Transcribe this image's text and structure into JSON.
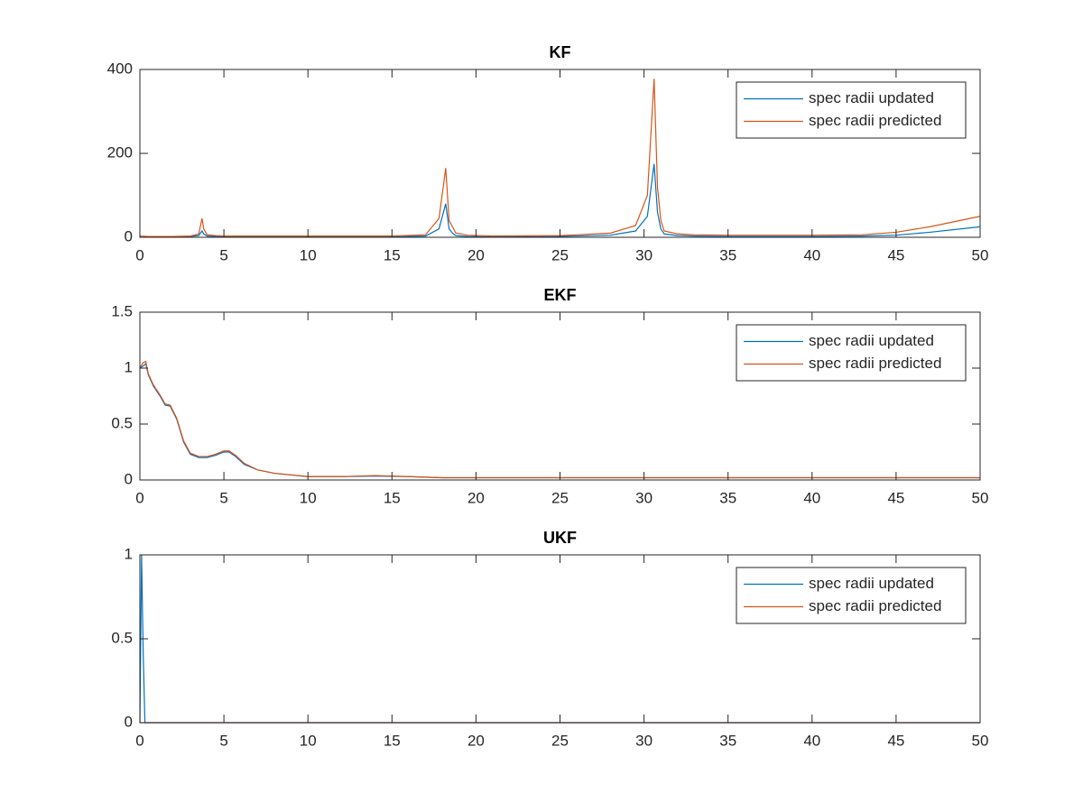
{
  "chart_data": [
    {
      "type": "line",
      "title": "KF",
      "legend": "northeast",
      "x": [
        0,
        0.5,
        1,
        2,
        3,
        3.5,
        3.7,
        3.8,
        4.0,
        4.5,
        5,
        10,
        15,
        17,
        17.8,
        18.2,
        18.4,
        18.6,
        18.8,
        19.5,
        21,
        25,
        28,
        29.5,
        30.2,
        30.6,
        30.8,
        31.0,
        31.2,
        32,
        33,
        35,
        40,
        43,
        45,
        47,
        50
      ],
      "series": [
        {
          "name": "spec radii updated",
          "color": "#0072bd",
          "values": [
            0,
            1,
            1,
            1,
            2,
            4,
            15,
            8,
            3,
            2,
            1,
            1,
            1,
            3,
            20,
            80,
            20,
            10,
            4,
            2,
            1,
            2,
            5,
            15,
            50,
            175,
            60,
            20,
            8,
            4,
            3,
            2,
            2,
            3,
            5,
            12,
            25
          ]
        },
        {
          "name": "spec radii predicted",
          "color": "#d95319",
          "values": [
            3,
            2,
            2,
            2,
            3,
            8,
            45,
            20,
            6,
            4,
            3,
            3,
            3,
            6,
            45,
            165,
            40,
            25,
            10,
            5,
            3,
            4,
            10,
            28,
            100,
            378,
            120,
            40,
            15,
            8,
            6,
            5,
            5,
            6,
            12,
            25,
            50
          ]
        }
      ],
      "xlim": [
        0,
        50
      ],
      "xticks": [
        0,
        5,
        10,
        15,
        20,
        25,
        30,
        35,
        40,
        45,
        50
      ],
      "ylim": [
        0,
        400
      ],
      "yticks": [
        0,
        200,
        400
      ]
    },
    {
      "type": "line",
      "title": "EKF",
      "legend": "northeast",
      "x": [
        0,
        0.2,
        0.35,
        0.5,
        0.8,
        1.2,
        1.5,
        1.8,
        2.2,
        2.6,
        3,
        3.5,
        4,
        4.5,
        5,
        5.3,
        5.7,
        6.2,
        7,
        8,
        10,
        12,
        14,
        16,
        18,
        25,
        35,
        50
      ],
      "series": [
        {
          "name": "spec radii updated",
          "color": "#0072bd",
          "values": [
            1.0,
            1.02,
            1.04,
            0.94,
            0.84,
            0.75,
            0.67,
            0.66,
            0.54,
            0.34,
            0.23,
            0.2,
            0.2,
            0.22,
            0.25,
            0.25,
            0.21,
            0.14,
            0.09,
            0.06,
            0.03,
            0.03,
            0.035,
            0.03,
            0.02,
            0.02,
            0.02,
            0.02
          ]
        },
        {
          "name": "spec radii predicted",
          "color": "#d95319",
          "values": [
            1.0,
            1.05,
            1.06,
            0.95,
            0.85,
            0.76,
            0.68,
            0.67,
            0.55,
            0.35,
            0.24,
            0.21,
            0.21,
            0.23,
            0.26,
            0.26,
            0.22,
            0.15,
            0.09,
            0.06,
            0.03,
            0.03,
            0.04,
            0.03,
            0.02,
            0.02,
            0.02,
            0.02
          ]
        }
      ],
      "xlim": [
        0,
        50
      ],
      "xticks": [
        0,
        5,
        10,
        15,
        20,
        25,
        30,
        35,
        40,
        45,
        50
      ],
      "ylim": [
        0,
        1.5
      ],
      "yticks": [
        0,
        0.5,
        1,
        1.5
      ]
    },
    {
      "type": "line",
      "title": "UKF",
      "legend": "northeast",
      "x": [
        0,
        0.1,
        0.2,
        0.3,
        0.5,
        50
      ],
      "series": [
        {
          "name": "spec radii updated",
          "color": "#0072bd",
          "values": [
            0,
            1,
            0.4,
            0,
            0,
            0
          ]
        },
        {
          "name": "spec radii predicted",
          "color": "#d95319",
          "values": [
            0,
            0,
            0,
            0,
            0,
            0
          ]
        }
      ],
      "xlim": [
        0,
        50
      ],
      "xticks": [
        0,
        5,
        10,
        15,
        20,
        25,
        30,
        35,
        40,
        45,
        50
      ],
      "ylim": [
        0,
        1
      ],
      "yticks": [
        0,
        0.5,
        1
      ]
    }
  ]
}
